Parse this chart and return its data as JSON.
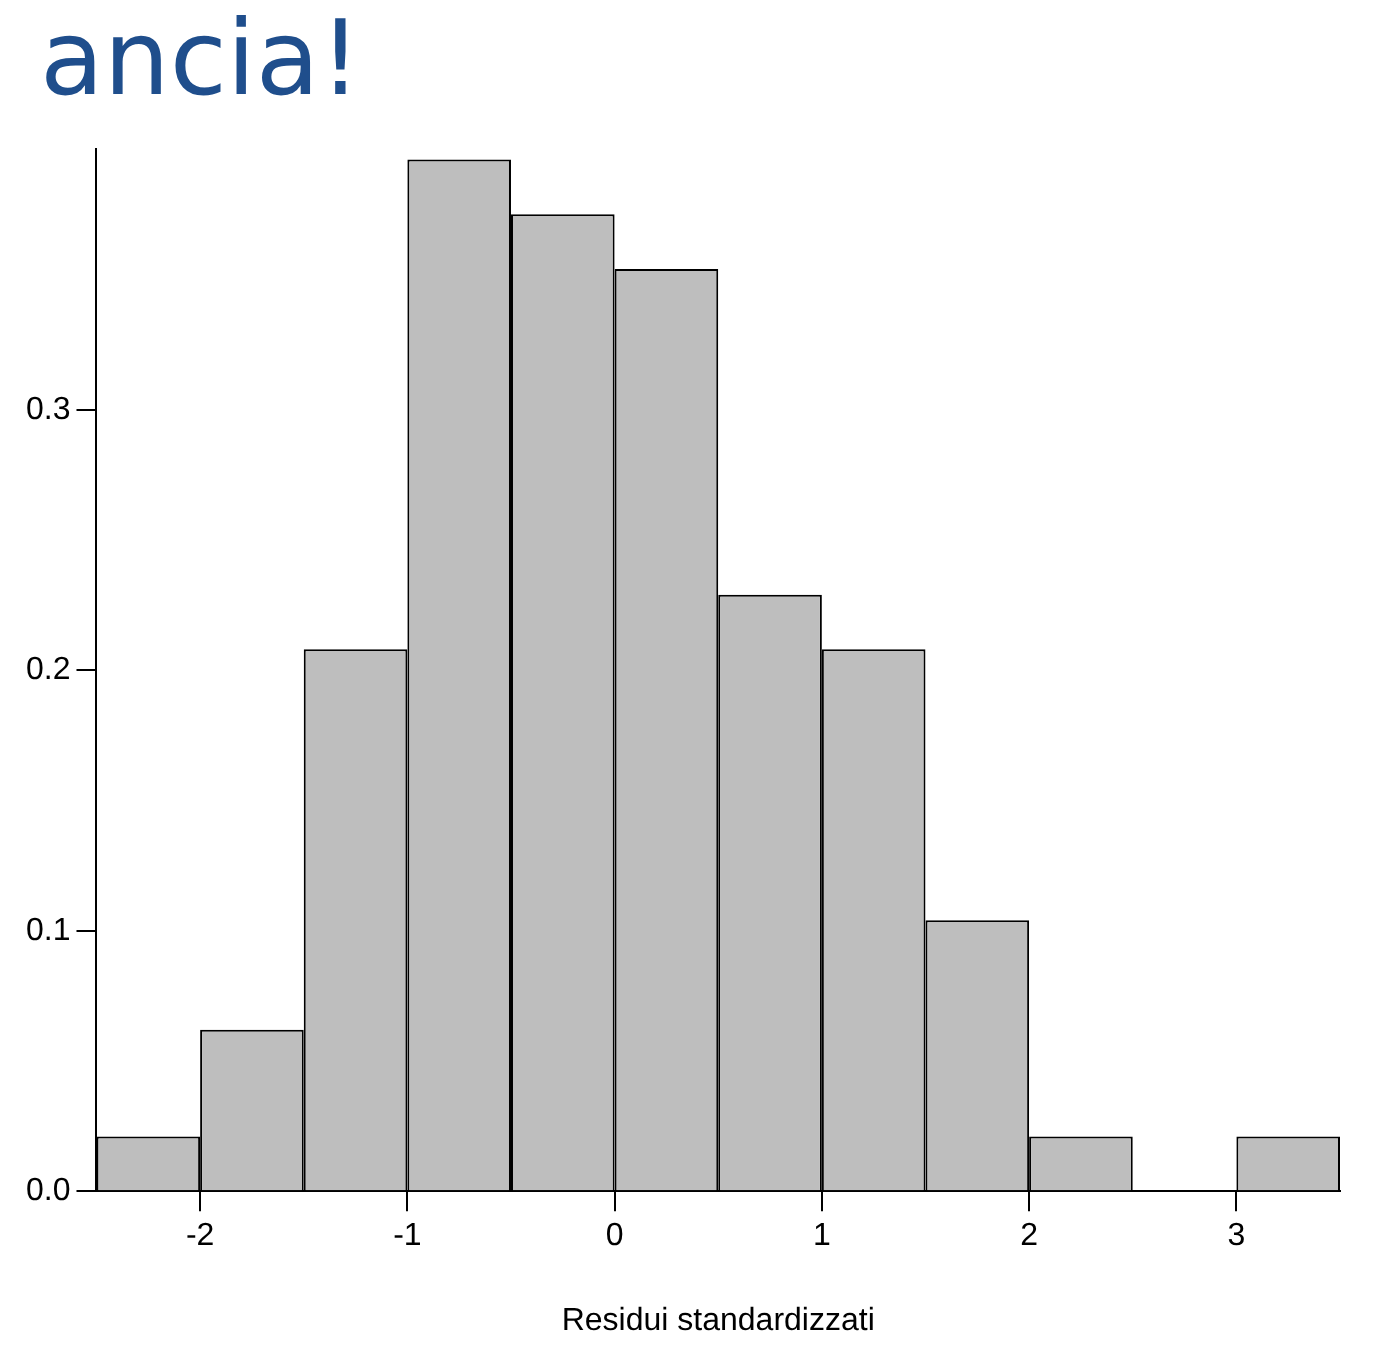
{
  "chart_data": {
    "type": "histogram",
    "title": "ancia!",
    "xlabel": "Residui standardizzati",
    "bins": [
      -2.5,
      -2,
      -1.5,
      -1,
      -0.5,
      0,
      0.5,
      1,
      1.5,
      2,
      2.5,
      3,
      3.5
    ],
    "values": [
      0.021,
      0.062,
      0.208,
      0.396,
      0.375,
      0.354,
      0.229,
      0.208,
      0.104,
      0.021,
      0,
      0.021
    ],
    "color": "#bebebe",
    "xlim": [
      -2.5,
      3.5
    ],
    "xticks": [
      -2,
      -1,
      0,
      1,
      2,
      3
    ],
    "ylim": [
      0,
      0.4
    ],
    "yticks": [
      {
        "value": 0,
        "label": "0.0"
      },
      0.1,
      0.2,
      0.3
    ],
    "grid": false,
    "legend": false
  }
}
